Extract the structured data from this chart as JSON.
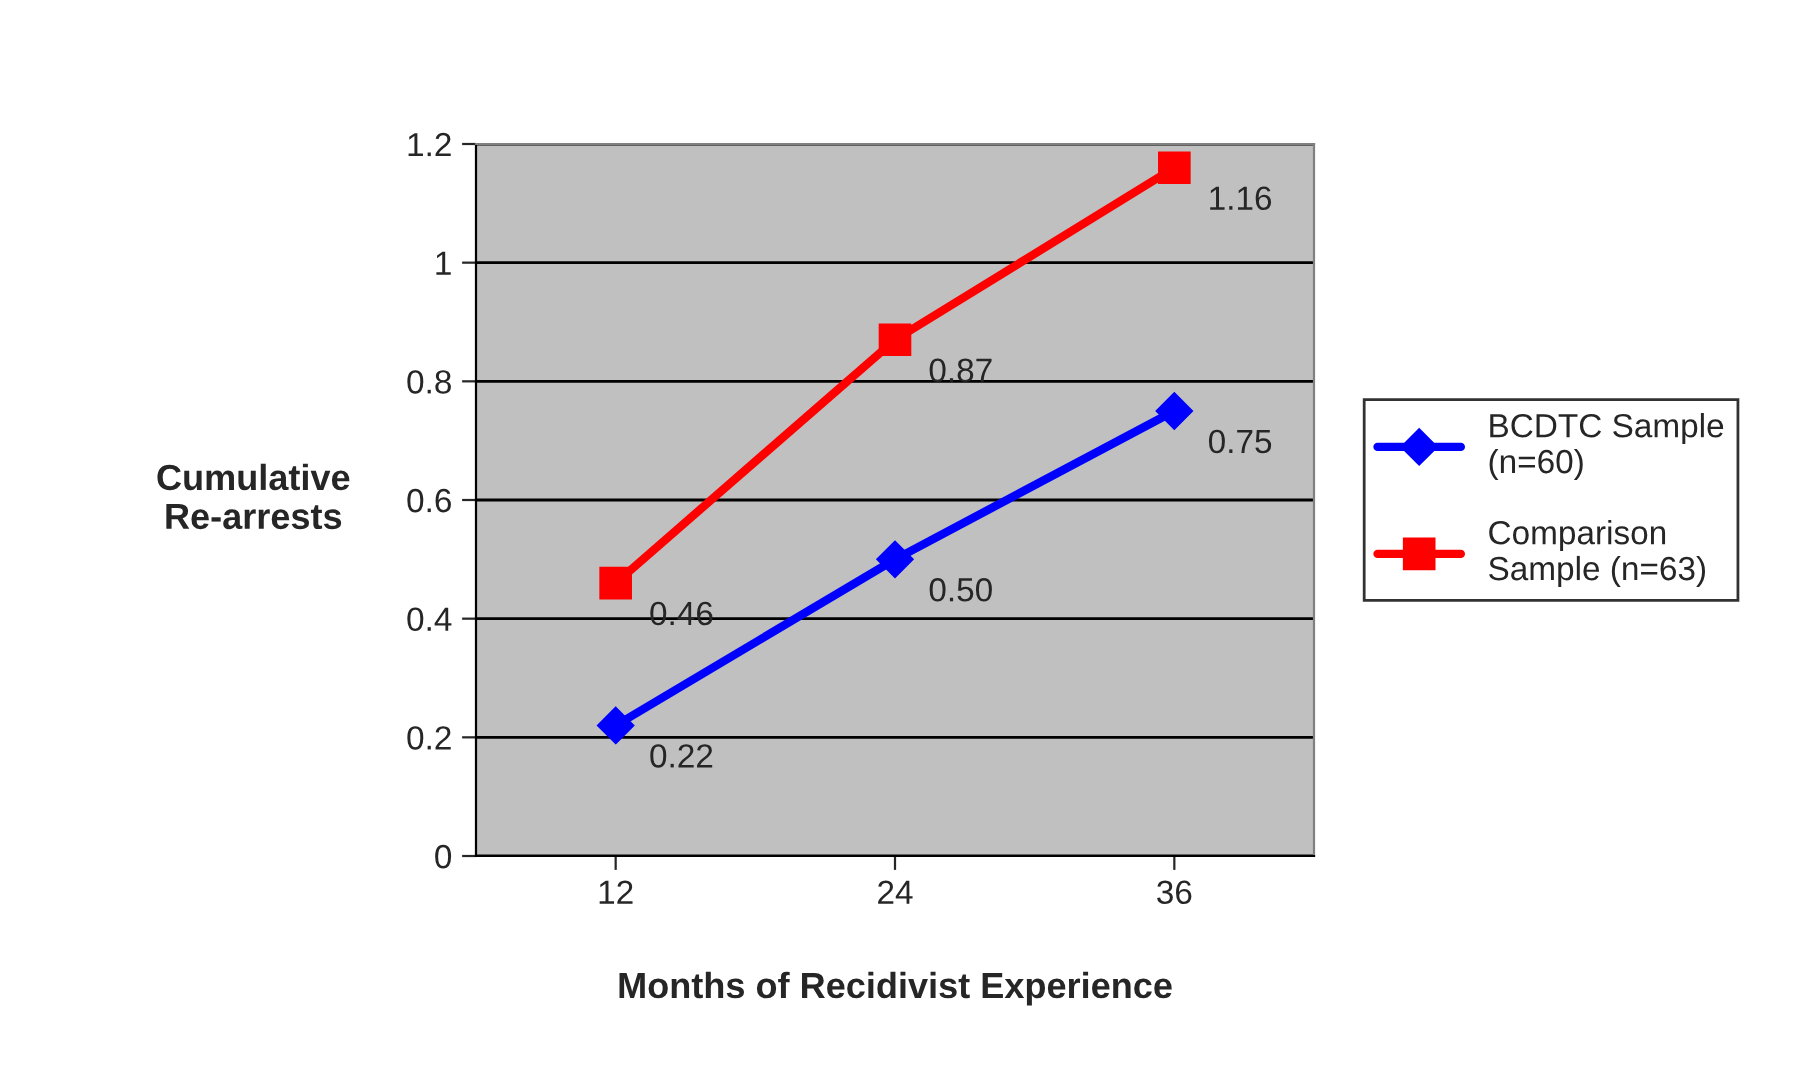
{
  "chart_data": {
    "type": "line",
    "xlabel": "Months of Recidivist Experience",
    "ylabel": "Cumulative\nRe-arrests",
    "categories": [
      "12",
      "24",
      "36"
    ],
    "series": [
      {
        "name": "BCDTC Sample\n(n=60)",
        "color": "#0000ff",
        "marker": "diamond",
        "values": [
          0.22,
          0.5,
          0.75
        ],
        "value_labels": [
          "0.22",
          "0.50",
          "0.75"
        ]
      },
      {
        "name": "Comparison\nSample (n=63)",
        "color": "#ff0000",
        "marker": "square",
        "values": [
          0.46,
          0.87,
          1.16
        ],
        "value_labels": [
          "0.46",
          "0.87",
          "1.16"
        ]
      }
    ],
    "ylim": [
      0,
      1.2
    ],
    "yticks": [
      0,
      0.2,
      0.4,
      0.6,
      0.8,
      1,
      1.2
    ],
    "grid": "y",
    "legend": "right",
    "line_style": "solid"
  }
}
